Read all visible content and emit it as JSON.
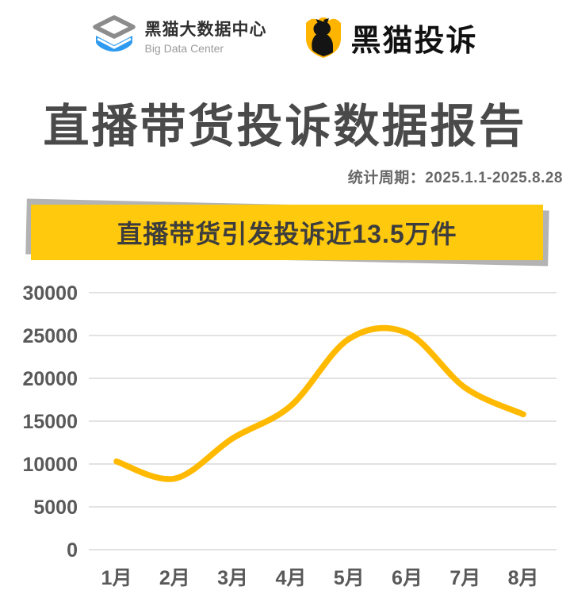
{
  "header": {
    "left_logo": {
      "icon": "data-stack-icon",
      "line1": "黑猫大数据中心",
      "line2": "Big Data Center"
    },
    "right_logo": {
      "icon": "black-cat-shield-icon",
      "name": "黑猫投诉"
    }
  },
  "title": "直播带货投诉数据报告",
  "subtitle": "统计周期：2025.1.1-2025.8.28",
  "banner": {
    "text": "直播带货引发投诉近13.5万件",
    "bg_color": "#FFC90D",
    "shadow_color": "#B3B3B3",
    "text_color": "#3D3D3D"
  },
  "chart_data": {
    "type": "line",
    "categories": [
      "1月",
      "2月",
      "3月",
      "4月",
      "5月",
      "6月",
      "7月",
      "8月"
    ],
    "values": [
      10300,
      8300,
      13000,
      16800,
      24600,
      25300,
      18900,
      15800
    ],
    "title": "",
    "xlabel": "",
    "ylabel": "",
    "ylim": [
      0,
      30000
    ],
    "yticks": [
      0,
      5000,
      10000,
      15000,
      20000,
      25000,
      30000
    ],
    "grid": true,
    "legend": false,
    "smooth": true,
    "line_color": "#FFBA00",
    "grid_color": "#D9D9D9",
    "tick_color": "#595959"
  }
}
